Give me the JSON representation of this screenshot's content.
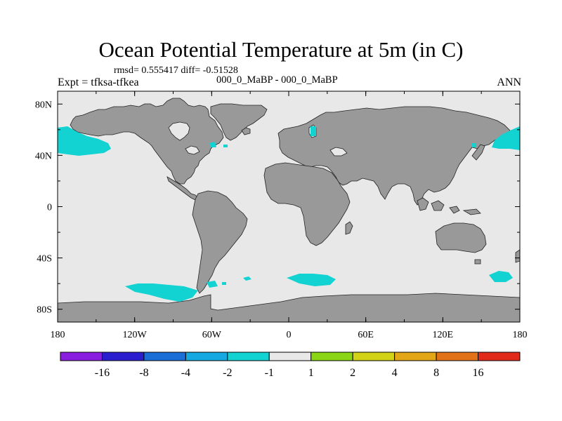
{
  "header": {
    "title": "Ocean Potential Temperature at 5m (in C)",
    "stats": "rmsd= 0.555417 diff= -0.51528",
    "left_label": "Expt = tfksa-tfkea",
    "center_label": "000_0_MaBP - 000_0_MaBP",
    "right_label": "ANN"
  },
  "axes": {
    "x_ticks": [
      {
        "value": -180,
        "label": "180"
      },
      {
        "value": -120,
        "label": "120W"
      },
      {
        "value": -60,
        "label": "60W"
      },
      {
        "value": 0,
        "label": "0"
      },
      {
        "value": 60,
        "label": "60E"
      },
      {
        "value": 120,
        "label": "120E"
      },
      {
        "value": 180,
        "label": "180"
      }
    ],
    "y_ticks": [
      {
        "value": 80,
        "label": "80N"
      },
      {
        "value": 40,
        "label": "40N"
      },
      {
        "value": 0,
        "label": "0"
      },
      {
        "value": -40,
        "label": "40S"
      },
      {
        "value": -80,
        "label": "80S"
      }
    ],
    "x_range": [
      -180,
      180
    ],
    "y_range": [
      -90,
      90
    ]
  },
  "colorbar": {
    "colors": [
      "#8a1ee0",
      "#2a1ecf",
      "#1a6ed6",
      "#16a8e0",
      "#12d2d2",
      "#e8e8e8",
      "#8ad616",
      "#d2d216",
      "#e2a616",
      "#e2721a",
      "#e22a1a"
    ],
    "labels": [
      "-16",
      "-8",
      "-4",
      "-2",
      "-1",
      "1",
      "2",
      "4",
      "8",
      "16"
    ]
  },
  "map": {
    "ocean_color": "#e8e8e8",
    "land_color": "#999999",
    "anomaly_color": "#12d2d2"
  }
}
